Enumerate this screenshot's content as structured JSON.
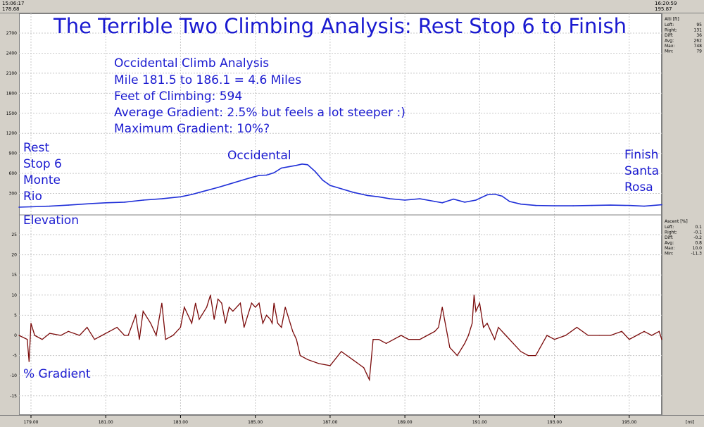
{
  "topbar": {
    "left_time": "15:06:17",
    "left_dist": "178.68",
    "right_time": "16:20:59",
    "right_dist": "195.87"
  },
  "annotations": {
    "title": "The Terrible Two Climbing Analysis: Rest Stop 6 to Finish",
    "info_lines": [
      "Occidental Climb Analysis",
      "Mile 181.5 to 186.1 = 4.6 Miles",
      "Feet of Climbing: 594",
      "Average Gradient: 2.5% but feels a lot steeper :)",
      "Maximum Gradient: 10%?"
    ],
    "start_label": [
      "Rest",
      "Stop 6",
      "Monte",
      "Rio"
    ],
    "peak_label": "Occidental",
    "finish_label": [
      "Finish",
      "Santa",
      "Rosa"
    ],
    "elevation_label": "Elevation",
    "gradient_label": "% Gradient"
  },
  "side_panels": {
    "altitude": {
      "title": "Alti [ft]",
      "rows": [
        [
          "Left:",
          "95"
        ],
        [
          "Right:",
          "131"
        ],
        [
          "Diff:",
          "36"
        ],
        [
          "Avg:",
          "262"
        ],
        [
          "Max:",
          "748"
        ],
        [
          "Min:",
          "79"
        ]
      ]
    },
    "ascent": {
      "title": "Ascent [%]",
      "rows": [
        [
          "Left:",
          "0.1"
        ],
        [
          "Right:",
          "-0.1"
        ],
        [
          "Diff:",
          "-0.2"
        ],
        [
          "Avg:",
          "0.8"
        ],
        [
          "Max:",
          "10.0"
        ],
        [
          "Min:",
          "-11.3"
        ]
      ]
    }
  },
  "chart_data": [
    {
      "type": "line",
      "title": "The Terrible Two Climbing Analysis: Rest Stop 6 to Finish",
      "ylabel": "Elevation",
      "xlabel": "[mi]",
      "xlim": [
        178.68,
        195.87
      ],
      "ylim": [
        0,
        2900
      ],
      "x_ticks": [
        "179.00",
        "181.00",
        "183.00",
        "185.00",
        "187.00",
        "189.00",
        "191.00",
        "193.00",
        "195.00"
      ],
      "y_ticks": [
        "300",
        "600",
        "900",
        "1200",
        "1500",
        "1800",
        "2100",
        "2400",
        "2700"
      ],
      "grid": true,
      "color": "#1f2fd8",
      "series": [
        {
          "x": [
            178.68,
            179.0,
            179.5,
            180.0,
            180.5,
            181.0,
            181.5,
            182.0,
            182.5,
            183.0,
            183.3,
            183.6,
            184.0,
            184.3,
            184.6,
            184.9,
            185.1,
            185.3,
            185.5,
            185.7,
            185.9,
            186.1,
            186.25,
            186.4,
            186.6,
            186.8,
            187.0,
            187.3,
            187.6,
            188.0,
            188.3,
            188.6,
            189.0,
            189.4,
            189.8,
            190.0,
            190.3,
            190.6,
            190.9,
            191.2,
            191.4,
            191.6,
            191.8,
            192.1,
            192.5,
            193.0,
            193.5,
            194.0,
            194.5,
            195.0,
            195.4,
            195.87
          ],
          "y": [
            95,
            100,
            110,
            125,
            145,
            160,
            170,
            200,
            220,
            250,
            285,
            330,
            390,
            440,
            490,
            540,
            570,
            575,
            610,
            680,
            700,
            720,
            740,
            730,
            630,
            500,
            420,
            370,
            320,
            270,
            250,
            220,
            200,
            220,
            180,
            160,
            215,
            170,
            200,
            280,
            290,
            260,
            180,
            140,
            120,
            115,
            115,
            120,
            125,
            120,
            110,
            131
          ]
        }
      ]
    },
    {
      "type": "line",
      "ylabel": "% Gradient",
      "xlabel": "[mi]",
      "xlim": [
        178.68,
        195.87
      ],
      "ylim": [
        -18,
        30
      ],
      "x_ticks": [
        "179.00",
        "181.00",
        "183.00",
        "185.00",
        "187.00",
        "189.00",
        "191.00",
        "193.00",
        "195.00"
      ],
      "y_ticks": [
        "-15",
        "-10",
        "-5",
        "0",
        "5",
        "10",
        "15",
        "20",
        "25"
      ],
      "grid": true,
      "color": "#7a0a0a",
      "series": [
        {
          "x": [
            178.68,
            178.9,
            178.95,
            179.0,
            179.1,
            179.3,
            179.5,
            179.8,
            180.0,
            180.3,
            180.5,
            180.7,
            180.9,
            181.1,
            181.3,
            181.5,
            181.6,
            181.8,
            181.9,
            182.0,
            182.2,
            182.35,
            182.5,
            182.6,
            182.8,
            183.0,
            183.1,
            183.3,
            183.4,
            183.5,
            183.7,
            183.8,
            183.9,
            184.0,
            184.1,
            184.2,
            184.3,
            184.4,
            184.6,
            184.7,
            184.8,
            184.9,
            185.0,
            185.1,
            185.2,
            185.3,
            185.4,
            185.45,
            185.5,
            185.6,
            185.7,
            185.8,
            185.9,
            186.0,
            186.1,
            186.2,
            186.4,
            186.7,
            187.0,
            187.3,
            187.6,
            187.9,
            188.05,
            188.15,
            188.3,
            188.5,
            188.7,
            188.9,
            189.1,
            189.4,
            189.6,
            189.8,
            189.9,
            190.0,
            190.2,
            190.4,
            190.6,
            190.7,
            190.8,
            190.85,
            190.9,
            191.0,
            191.1,
            191.2,
            191.3,
            191.4,
            191.5,
            191.7,
            191.9,
            192.1,
            192.3,
            192.5,
            192.8,
            193.0,
            193.3,
            193.6,
            193.9,
            194.2,
            194.5,
            194.8,
            195.0,
            195.2,
            195.4,
            195.6,
            195.8,
            195.87
          ],
          "y": [
            0,
            -1,
            -6.5,
            3,
            0,
            -1,
            0.5,
            0,
            1,
            0,
            2,
            -1,
            0,
            1,
            2,
            0,
            0,
            5,
            -1,
            6,
            3,
            0,
            8,
            -1,
            0,
            2,
            7,
            3,
            8,
            4,
            7,
            10,
            4,
            9,
            8,
            3,
            7,
            6,
            8,
            2,
            5,
            8,
            7,
            8,
            3,
            5,
            4,
            3,
            8,
            3,
            2,
            7,
            4,
            1,
            -1,
            -5,
            -6,
            -7,
            -7.5,
            -4,
            -6,
            -8,
            -11,
            -1,
            -1,
            -2,
            -1,
            0,
            -1,
            -1,
            0,
            1,
            2,
            7,
            -3,
            -5,
            -2,
            0,
            3,
            10,
            6,
            8,
            2,
            3,
            1,
            -1,
            2,
            0,
            -2,
            -4,
            -5,
            -5,
            0,
            -1,
            0,
            2,
            0,
            0,
            0,
            1,
            -1,
            0,
            1,
            0,
            1,
            -1
          ]
        }
      ]
    }
  ]
}
